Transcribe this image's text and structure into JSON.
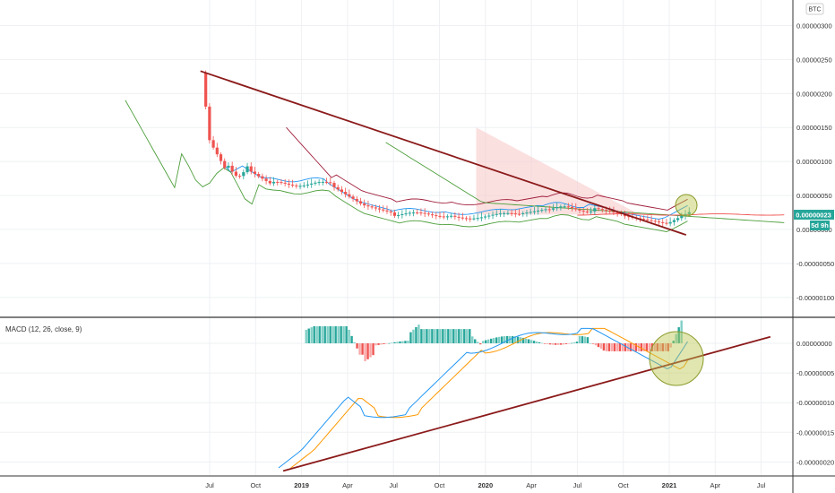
{
  "chart_data": {
    "type": "candlestick",
    "currency": "BTC",
    "price_axis": {
      "ticks": [
        "0.00000300",
        "0.00000250",
        "0.00000200",
        "0.00000150",
        "0.00000100",
        "0.00000050",
        "0.00000000",
        "-0.00000050",
        "-0.00000100"
      ],
      "tick_values": [
        300,
        250,
        200,
        150,
        100,
        50,
        0,
        -50,
        -100
      ],
      "last_price_label": "0.00000023",
      "countdown_label": "5d 9h"
    },
    "macd_axis": {
      "ticks": [
        "0.00000000",
        "-0.00000005",
        "-0.00000010",
        "-0.00000015",
        "-0.00000020"
      ],
      "tick_values": [
        0,
        -5,
        -10,
        -15,
        -20
      ]
    },
    "time_axis": {
      "labels": [
        {
          "text": "Jul",
          "t": 6,
          "strong": false
        },
        {
          "text": "Oct",
          "t": 9,
          "strong": false
        },
        {
          "text": "2019",
          "t": 12,
          "strong": true
        },
        {
          "text": "Apr",
          "t": 15,
          "strong": false
        },
        {
          "text": "Jul",
          "t": 18,
          "strong": false
        },
        {
          "text": "Oct",
          "t": 21,
          "strong": false
        },
        {
          "text": "2020",
          "t": 24,
          "strong": true
        },
        {
          "text": "Apr",
          "t": 27,
          "strong": false
        },
        {
          "text": "Jul",
          "t": 30,
          "strong": false
        },
        {
          "text": "Oct",
          "t": 33,
          "strong": false
        },
        {
          "text": "2021",
          "t": 36,
          "strong": true
        },
        {
          "text": "Apr",
          "t": 39,
          "strong": false
        },
        {
          "text": "Jul",
          "t": 42,
          "strong": false
        }
      ]
    },
    "macd_indicator_label": "MACD (12, 26, close, 9)",
    "price_trendline": [
      [
        5.4,
        233
      ],
      [
        37.1,
        -8
      ]
    ],
    "macd_trendline": [
      [
        10.8,
        -21.5
      ],
      [
        42.6,
        1.1
      ]
    ]
  }
}
